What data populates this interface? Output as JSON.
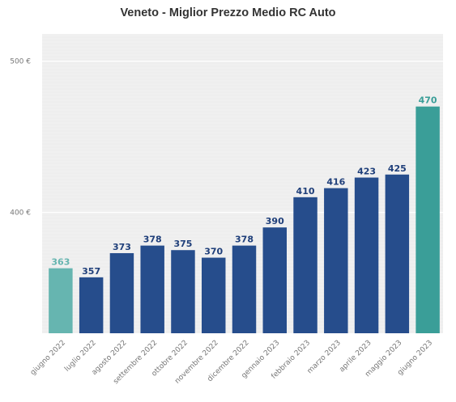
{
  "chart_data": {
    "type": "bar",
    "title": "Veneto - Miglior Prezzo Medio RC Auto",
    "xlabel": "",
    "ylabel": "",
    "ylim": [
      320,
      518
    ],
    "y_ticks": [
      {
        "value": 400,
        "label": "400 €"
      },
      {
        "value": 500,
        "label": "500 €"
      }
    ],
    "grid": true,
    "categories": [
      "giugno 2022",
      "luglio 2022",
      "agosto 2022",
      "settembre 2022",
      "ottobre 2022",
      "novembre 2022",
      "dicembre 2022",
      "gennaio 2023",
      "febbraio 2023",
      "marzo 2023",
      "aprile 2023",
      "maggio 2023",
      "giugno 2023"
    ],
    "values": [
      363,
      357,
      373,
      378,
      375,
      370,
      378,
      390,
      410,
      416,
      423,
      425,
      470
    ],
    "colors": [
      "#66b5b0",
      "#264d8c",
      "#264d8c",
      "#264d8c",
      "#264d8c",
      "#264d8c",
      "#264d8c",
      "#264d8c",
      "#264d8c",
      "#264d8c",
      "#264d8c",
      "#264d8c",
      "#3a9e98"
    ],
    "label_colors": [
      "#66b5b0",
      "#1f3f7a",
      "#1f3f7a",
      "#1f3f7a",
      "#1f3f7a",
      "#1f3f7a",
      "#1f3f7a",
      "#1f3f7a",
      "#1f3f7a",
      "#1f3f7a",
      "#1f3f7a",
      "#1f3f7a",
      "#3a9e98"
    ]
  }
}
